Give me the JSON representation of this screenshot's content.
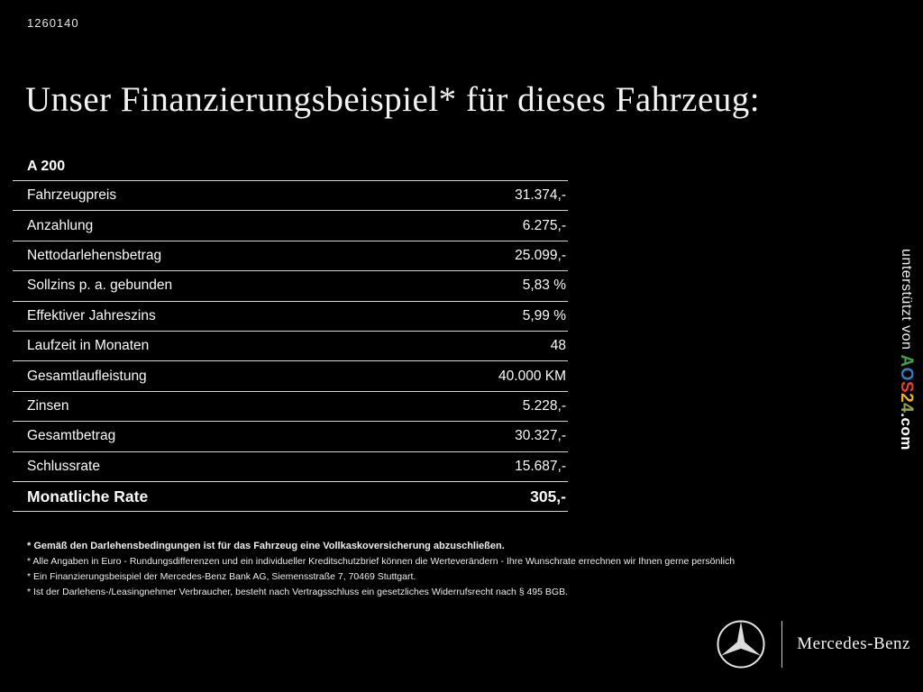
{
  "page": {
    "id_number": "1260140",
    "title": "Unser Finanzierungsbeispiel* für dieses Fahrzeug:"
  },
  "financing_table": {
    "model": "A 200",
    "rows": [
      {
        "label": "Fahrzeugpreis",
        "value": "31.374,-",
        "bold": false
      },
      {
        "label": "Anzahlung",
        "value": "6.275,-",
        "bold": false
      },
      {
        "label": "Nettodarlehensbetrag",
        "value": "25.099,-",
        "bold": false
      },
      {
        "label": "Sollzins p. a. gebunden",
        "value": "5,83 %",
        "bold": false
      },
      {
        "label": "Effektiver Jahreszins",
        "value": "5,99 %",
        "bold": false
      },
      {
        "label": "Laufzeit in Monaten",
        "value": "48",
        "bold": false
      },
      {
        "label": "Gesamtlaufleistung",
        "value": "40.000 KM",
        "bold": false
      },
      {
        "label": "Zinsen",
        "value": "5.228,-",
        "bold": false
      },
      {
        "label": "Gesamtbetrag",
        "value": "30.327,-",
        "bold": false
      },
      {
        "label": "Schlussrate",
        "value": "15.687,-",
        "bold": false
      },
      {
        "label": "Monatliche Rate",
        "value": "305,-",
        "bold": true
      }
    ]
  },
  "footnotes": [
    "* Gemäß den Darlehensbedingungen ist für das Fahrzeug eine Vollkaskoversicherung abzuschließen.",
    "* Alle Angaben in Euro - Rundungsdifferenzen und ein individueller Kreditschutzbrief können die Werteverändern - Ihre Wunschrate errechnen wir Ihnen gerne persönlich",
    "* Ein Finanzierungsbeispiel der Mercedes-Benz Bank AG, Siemensstraße 7, 70469 Stuttgart.",
    "* Ist der Darlehens-/Leasingnehmer Verbraucher, besteht nach Vertragsschluss ein gesetzliches Widerrufsrecht nach § 495 BGB."
  ],
  "watermark": {
    "prefix": "unterstützt von ",
    "brand_letters": [
      {
        "ch": "A",
        "color": "#44a047"
      },
      {
        "ch": "O",
        "color": "#3a78c2"
      },
      {
        "ch": "S",
        "color": "#e0442f"
      },
      {
        "ch": "2",
        "color": "#e7b71c"
      },
      {
        "ch": "4",
        "color": "#9aa43c"
      }
    ],
    "suffix": ".com"
  },
  "footer": {
    "brand": "Mercedes-Benz"
  },
  "colors": {
    "background": "#000000",
    "text": "#ffffff",
    "rule_lines": "#d6d6d6"
  }
}
